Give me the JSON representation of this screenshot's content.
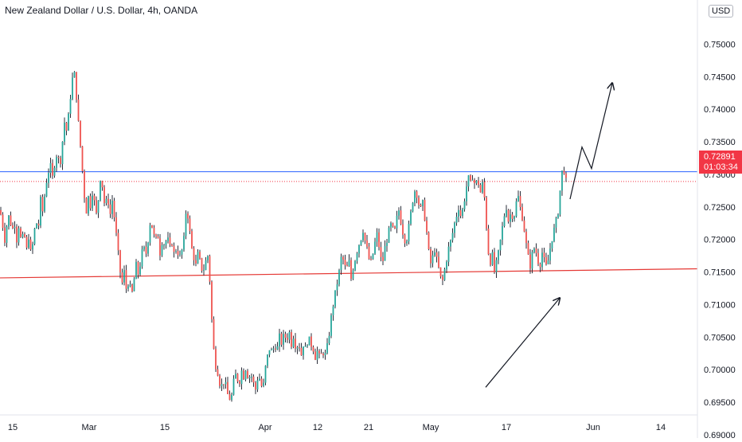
{
  "header": {
    "title": "New Zealand Dollar / U.S. Dollar, 4h, OANDA",
    "currency_badge": "USD"
  },
  "current_price": {
    "value": 0.72891,
    "label": "0.72891",
    "countdown": "01:03:34",
    "color": "#f23645"
  },
  "colors": {
    "up": "#26a69a",
    "down": "#ef5350",
    "wick": "#2a2e39",
    "resistance": "#2962ff",
    "support": "#e53935",
    "grid": "#f0f3fa"
  },
  "chart_data": {
    "type": "candlestick",
    "symbol": "NZDUSD",
    "timeframe": "4h",
    "source": "OANDA",
    "ylim": [
      0.68951,
      0.75678
    ],
    "y_ticks": [
      "0.69000",
      "0.69500",
      "0.70000",
      "0.70500",
      "0.71000",
      "0.71500",
      "0.72000",
      "0.72500",
      "0.73000",
      "0.73500",
      "0.74000",
      "0.74500",
      "0.75000"
    ],
    "x_ticks": [
      "15",
      "Mar",
      "15",
      "Apr",
      "12",
      "21",
      "May",
      "17",
      "Jun",
      "14"
    ],
    "close_path": [
      [
        0,
        0.7245
      ],
      [
        3,
        0.7225
      ],
      [
        6,
        0.72
      ],
      [
        9,
        0.7225
      ],
      [
        12,
        0.724
      ],
      [
        15,
        0.721
      ],
      [
        18,
        0.723
      ],
      [
        21,
        0.72
      ],
      [
        24,
        0.7225
      ],
      [
        27,
        0.719
      ],
      [
        30,
        0.7215
      ],
      [
        33,
        0.718
      ],
      [
        36,
        0.7205
      ],
      [
        39,
        0.7175
      ],
      [
        42,
        0.72
      ],
      [
        45,
        0.723
      ],
      [
        48,
        0.7215
      ],
      [
        51,
        0.726
      ],
      [
        54,
        0.724
      ],
      [
        57,
        0.728
      ],
      [
        60,
        0.73
      ],
      [
        63,
        0.7315
      ],
      [
        66,
        0.7295
      ],
      [
        69,
        0.732
      ],
      [
        72,
        0.7335
      ],
      [
        75,
        0.731
      ],
      [
        78,
        0.7345
      ],
      [
        81,
        0.738
      ],
      [
        84,
        0.7365
      ],
      [
        87,
        0.74
      ],
      [
        90,
        0.744
      ],
      [
        93,
        0.746
      ],
      [
        96,
        0.742
      ],
      [
        99,
        0.737
      ],
      [
        102,
        0.733
      ],
      [
        105,
        0.728
      ],
      [
        108,
        0.724
      ],
      [
        111,
        0.7265
      ],
      [
        114,
        0.725
      ],
      [
        117,
        0.7285
      ],
      [
        120,
        0.723
      ],
      [
        123,
        0.7255
      ],
      [
        126,
        0.7295
      ],
      [
        129,
        0.728
      ],
      [
        132,
        0.7245
      ],
      [
        135,
        0.727
      ],
      [
        138,
        0.7235
      ],
      [
        141,
        0.726
      ],
      [
        144,
        0.723
      ],
      [
        147,
        0.7195
      ],
      [
        150,
        0.716
      ],
      [
        153,
        0.713
      ],
      [
        156,
        0.715
      ],
      [
        159,
        0.712
      ],
      [
        162,
        0.714
      ],
      [
        165,
        0.711
      ],
      [
        168,
        0.7135
      ],
      [
        171,
        0.716
      ],
      [
        174,
        0.7145
      ],
      [
        177,
        0.717
      ],
      [
        180,
        0.719
      ],
      [
        183,
        0.7175
      ],
      [
        186,
        0.72
      ],
      [
        189,
        0.723
      ],
      [
        192,
        0.7215
      ],
      [
        195,
        0.7195
      ],
      [
        198,
        0.721
      ],
      [
        201,
        0.718
      ],
      [
        204,
        0.72
      ],
      [
        207,
        0.719
      ],
      [
        210,
        0.7205
      ],
      [
        213,
        0.7185
      ],
      [
        216,
        0.7195
      ],
      [
        219,
        0.7175
      ],
      [
        222,
        0.719
      ],
      [
        225,
        0.717
      ],
      [
        228,
        0.718
      ],
      [
        231,
        0.72
      ],
      [
        234,
        0.725
      ],
      [
        237,
        0.723
      ],
      [
        240,
        0.719
      ],
      [
        243,
        0.7175
      ],
      [
        246,
        0.716
      ],
      [
        249,
        0.718
      ],
      [
        252,
        0.716
      ],
      [
        255,
        0.715
      ],
      [
        258,
        0.7165
      ],
      [
        261,
        0.7175
      ],
      [
        264,
        0.713
      ],
      [
        267,
        0.705
      ],
      [
        270,
        0.701
      ],
      [
        273,
        0.7
      ],
      [
        276,
        0.698
      ],
      [
        279,
        0.6975
      ],
      [
        282,
        0.6985
      ],
      [
        285,
        0.6965
      ],
      [
        288,
        0.6955
      ],
      [
        291,
        0.696
      ],
      [
        294,
        0.6985
      ],
      [
        297,
        0.6995
      ],
      [
        300,
        0.6975
      ],
      [
        303,
        0.7
      ],
      [
        306,
        0.699
      ],
      [
        309,
        0.7005
      ],
      [
        312,
        0.6985
      ],
      [
        315,
        0.6995
      ],
      [
        318,
        0.698
      ],
      [
        321,
        0.697
      ],
      [
        324,
        0.699
      ],
      [
        327,
        0.6985
      ],
      [
        330,
        0.6965
      ],
      [
        333,
        0.7
      ],
      [
        336,
        0.702
      ],
      [
        339,
        0.7035
      ],
      [
        342,
        0.7025
      ],
      [
        345,
        0.704
      ],
      [
        348,
        0.703
      ],
      [
        351,
        0.705
      ],
      [
        354,
        0.704
      ],
      [
        357,
        0.7055
      ],
      [
        360,
        0.7045
      ],
      [
        363,
        0.706
      ],
      [
        366,
        0.704
      ],
      [
        369,
        0.7055
      ],
      [
        372,
        0.703
      ],
      [
        375,
        0.7045
      ],
      [
        378,
        0.702
      ],
      [
        381,
        0.704
      ],
      [
        384,
        0.703
      ],
      [
        387,
        0.705
      ],
      [
        390,
        0.704
      ],
      [
        393,
        0.7035
      ],
      [
        396,
        0.702
      ],
      [
        399,
        0.703
      ],
      [
        402,
        0.7015
      ],
      [
        405,
        0.703
      ],
      [
        408,
        0.702
      ],
      [
        411,
        0.7035
      ],
      [
        414,
        0.706
      ],
      [
        417,
        0.709
      ],
      [
        420,
        0.711
      ],
      [
        423,
        0.713
      ],
      [
        426,
        0.715
      ],
      [
        429,
        0.7175
      ],
      [
        432,
        0.7165
      ],
      [
        435,
        0.715
      ],
      [
        438,
        0.717
      ],
      [
        441,
        0.714
      ],
      [
        444,
        0.716
      ],
      [
        447,
        0.7175
      ],
      [
        450,
        0.719
      ],
      [
        453,
        0.72
      ],
      [
        456,
        0.7215
      ],
      [
        459,
        0.7195
      ],
      [
        462,
        0.718
      ],
      [
        465,
        0.716
      ],
      [
        468,
        0.7175
      ],
      [
        471,
        0.7195
      ],
      [
        474,
        0.721
      ],
      [
        477,
        0.718
      ],
      [
        480,
        0.716
      ],
      [
        483,
        0.7185
      ],
      [
        486,
        0.72
      ],
      [
        489,
        0.7215
      ],
      [
        492,
        0.7225
      ],
      [
        495,
        0.7205
      ],
      [
        498,
        0.723
      ],
      [
        501,
        0.7245
      ],
      [
        504,
        0.7225
      ],
      [
        507,
        0.7205
      ],
      [
        510,
        0.7195
      ],
      [
        513,
        0.7215
      ],
      [
        516,
        0.724
      ],
      [
        519,
        0.7265
      ],
      [
        522,
        0.728
      ],
      [
        525,
        0.726
      ],
      [
        528,
        0.7245
      ],
      [
        531,
        0.7255
      ],
      [
        534,
        0.723
      ],
      [
        537,
        0.72
      ],
      [
        540,
        0.716
      ],
      [
        543,
        0.717
      ],
      [
        546,
        0.7185
      ],
      [
        549,
        0.7165
      ],
      [
        552,
        0.715
      ],
      [
        555,
        0.713
      ],
      [
        558,
        0.715
      ],
      [
        561,
        0.717
      ],
      [
        564,
        0.719
      ],
      [
        567,
        0.72
      ],
      [
        570,
        0.722
      ],
      [
        573,
        0.7235
      ],
      [
        576,
        0.725
      ],
      [
        579,
        0.7235
      ],
      [
        582,
        0.725
      ],
      [
        585,
        0.7275
      ],
      [
        588,
        0.7295
      ],
      [
        591,
        0.7285
      ],
      [
        594,
        0.73
      ],
      [
        597,
        0.728
      ],
      [
        600,
        0.7295
      ],
      [
        603,
        0.727
      ],
      [
        606,
        0.7285
      ],
      [
        609,
        0.726
      ],
      [
        612,
        0.72
      ],
      [
        615,
        0.716
      ],
      [
        618,
        0.718
      ],
      [
        621,
        0.715
      ],
      [
        624,
        0.7165
      ],
      [
        627,
        0.7185
      ],
      [
        630,
        0.721
      ],
      [
        633,
        0.7235
      ],
      [
        636,
        0.725
      ],
      [
        639,
        0.7225
      ],
      [
        642,
        0.7245
      ],
      [
        645,
        0.723
      ],
      [
        648,
        0.7255
      ],
      [
        651,
        0.7265
      ],
      [
        654,
        0.7245
      ],
      [
        657,
        0.723
      ],
      [
        660,
        0.72
      ],
      [
        663,
        0.7175
      ],
      [
        666,
        0.716
      ],
      [
        669,
        0.718
      ],
      [
        672,
        0.719
      ],
      [
        675,
        0.717
      ],
      [
        678,
        0.716
      ],
      [
        681,
        0.718
      ],
      [
        684,
        0.7165
      ],
      [
        687,
        0.7155
      ],
      [
        690,
        0.718
      ],
      [
        693,
        0.72
      ],
      [
        696,
        0.7215
      ],
      [
        699,
        0.723
      ],
      [
        702,
        0.725
      ],
      [
        705,
        0.73
      ],
      [
        708,
        0.731
      ],
      [
        711,
        0.7289
      ]
    ],
    "horizontal_levels": [
      {
        "name": "resistance",
        "y": 0.7304,
        "color": "#2962ff"
      },
      {
        "name": "current-price",
        "y": 0.72891,
        "color": "#f23645"
      }
    ],
    "trendline": {
      "y_start": 0.7141,
      "y_end": 0.7155
    },
    "arrows": [
      {
        "name": "up-arrow-lower",
        "from": [
          610,
          0.6973
        ],
        "to": [
          703,
          0.711
        ]
      },
      {
        "name": "projection-path",
        "points": [
          [
            716,
            0.7262
          ],
          [
            731,
            0.7342
          ],
          [
            743,
            0.7309
          ],
          [
            769,
            0.744
          ]
        ]
      }
    ]
  }
}
